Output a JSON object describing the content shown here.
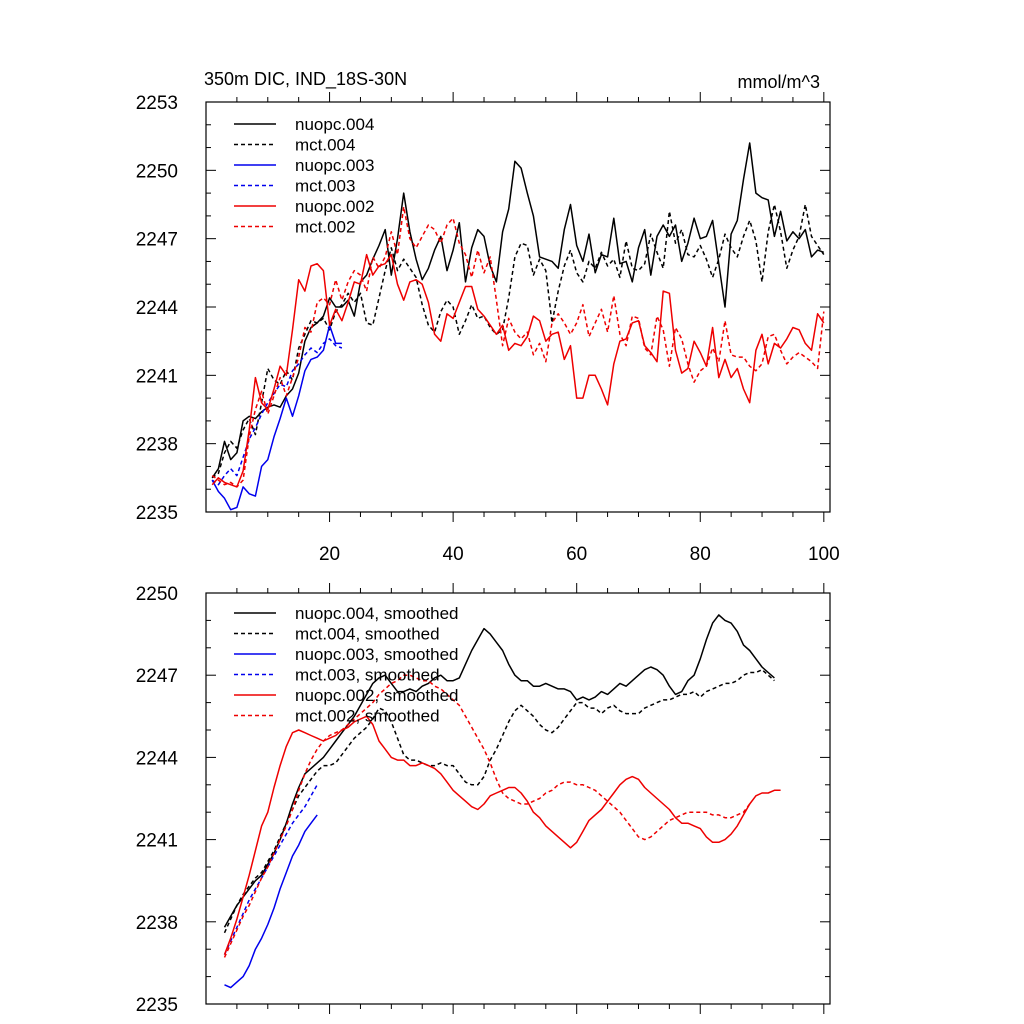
{
  "chart_data": [
    {
      "type": "line",
      "title": "350m DIC, IND_18S-30N",
      "units": "mmol/m^3",
      "ylim": [
        2235,
        2253
      ],
      "yticks": [
        2235,
        2238,
        2241,
        2244,
        2247,
        2250,
        2253
      ],
      "yticklabels": [
        "2235",
        "2238",
        "2241",
        "2244",
        "2247",
        "2250",
        "2253"
      ],
      "xlim": [
        0,
        101
      ],
      "xticks": [
        20,
        40,
        60,
        80,
        100
      ],
      "xticklabels": [
        "20",
        "40",
        "60",
        "80",
        "100"
      ],
      "legend_position": "top-left",
      "series": [
        {
          "name": "nuopc.004",
          "color": "#000000",
          "dash": "solid",
          "x_start": 1,
          "values": [
            2236.5,
            2236.9,
            2238.1,
            2237.3,
            2237.6,
            2239.0,
            2239.2,
            2239.1,
            2239.4,
            2239.6,
            2239.7,
            2239.6,
            2240.1,
            2240.4,
            2241.1,
            2242.5,
            2243.1,
            2243.3,
            2243.6,
            2244.4,
            2244.0,
            2244.0,
            2244.3,
            2243.6,
            2245.1,
            2245.4,
            2246.1,
            2246.7,
            2247.4,
            2245.4,
            2247.0,
            2249.0,
            2247.3,
            2246.1,
            2245.2,
            2245.7,
            2246.5,
            2247.1,
            2245.6,
            2246.5,
            2247.7,
            2245.1,
            2246.6,
            2247.4,
            2247.1,
            2245.8,
            2245.1,
            2247.3,
            2248.3,
            2250.4,
            2250.1,
            2249.0,
            2248.0,
            2246.2,
            2246.1,
            2246.0,
            2245.7,
            2247.4,
            2248.5,
            2246.7,
            2246.0,
            2247.2,
            2245.5,
            2246.3,
            2246.2,
            2247.9,
            2245.9,
            2246.0,
            2245.1,
            2246.6,
            2247.4,
            2245.4,
            2247.1,
            2247.6,
            2247.1,
            2247.6,
            2246.0,
            2246.8,
            2247.9,
            2247.0,
            2247.1,
            2247.8,
            2245.9,
            2244.0,
            2247.2,
            2247.8,
            2249.6,
            2251.2,
            2249.0,
            2248.8,
            2248.7,
            2247.1,
            2248.2,
            2246.9,
            2247.3,
            2247.0,
            2247.4,
            2246.2,
            2246.5,
            2246.4
          ]
        },
        {
          "name": "mct.004",
          "color": "#000000",
          "dash": "dashed",
          "x_start": 1,
          "values": [
            2236.5,
            2236.7,
            2237.6,
            2238.1,
            2237.8,
            2238.6,
            2239.1,
            2238.4,
            2239.8,
            2241.3,
            2240.8,
            2240.6,
            2241.2,
            2240.8,
            2242.2,
            2242.8,
            2243.4,
            2243.3,
            2243.5,
            2243.0,
            2243.8,
            2244.1,
            2244.6,
            2244.2,
            2244.6,
            2243.3,
            2243.2,
            2244.4,
            2245.6,
            2246.6,
            2245.6,
            2246.1,
            2245.7,
            2245.3,
            2244.1,
            2243.2,
            2242.9,
            2243.8,
            2244.3,
            2244.0,
            2242.8,
            2243.4,
            2244.1,
            2243.5,
            2243.6,
            2243.1,
            2242.8,
            2243.0,
            2244.4,
            2246.2,
            2246.8,
            2246.7,
            2245.4,
            2246.1,
            2245.6,
            2243.3,
            2244.7,
            2245.8,
            2246.5,
            2245.5,
            2245.1,
            2246.0,
            2245.7,
            2246.4,
            2245.8,
            2246.1,
            2245.3,
            2246.9,
            2245.7,
            2245.6,
            2245.9,
            2247.2,
            2246.4,
            2245.7,
            2248.2,
            2246.8,
            2247.4,
            2246.3,
            2246.2,
            2246.7,
            2246.1,
            2245.3,
            2246.1,
            2247.2,
            2246.6,
            2246.2,
            2247.1,
            2247.8,
            2246.9,
            2245.1,
            2247.3,
            2248.5,
            2247.3,
            2245.7,
            2246.5,
            2247.1,
            2248.5,
            2247.1,
            2246.7,
            2246.3
          ]
        },
        {
          "name": "nuopc.003",
          "color": "#0000ee",
          "dash": "solid",
          "x_start": 1,
          "values": [
            2236.4,
            2235.9,
            2235.6,
            2235.1,
            2235.2,
            2236.1,
            2235.8,
            2235.7,
            2237.0,
            2237.3,
            2238.3,
            2239.1,
            2240.0,
            2239.2,
            2240.1,
            2241.2,
            2241.7,
            2241.8,
            2242.1,
            2243.2,
            2242.4,
            2242.4
          ]
        },
        {
          "name": "mct.003",
          "color": "#0000ee",
          "dash": "dashed",
          "x_start": 1,
          "values": [
            2236.4,
            2236.2,
            2236.6,
            2236.9,
            2236.6,
            2237.4,
            2238.2,
            2238.7,
            2239.3,
            2239.8,
            2240.2,
            2240.6,
            2240.5,
            2241.2,
            2241.5,
            2241.9,
            2242.2,
            2242.0,
            2242.4,
            2242.6,
            2242.3,
            2242.2
          ]
        },
        {
          "name": "nuopc.002",
          "color": "#ee0000",
          "dash": "solid",
          "x_start": 1,
          "values": [
            2236.2,
            2236.5,
            2236.3,
            2236.2,
            2236.1,
            2236.8,
            2238.6,
            2240.9,
            2239.8,
            2239.5,
            2240.4,
            2241.4,
            2241.0,
            2243.0,
            2245.2,
            2244.7,
            2245.8,
            2245.9,
            2245.6,
            2243.2,
            2243.9,
            2243.4,
            2244.2,
            2245.1,
            2245.0,
            2246.3,
            2245.4,
            2245.8,
            2245.9,
            2246.3,
            2245.0,
            2244.3,
            2245.1,
            2245.2,
            2245.0,
            2244.2,
            2242.8,
            2242.5,
            2243.7,
            2243.5,
            2244.2,
            2244.9,
            2244.9,
            2243.9,
            2243.6,
            2243.2,
            2242.8,
            2243.2,
            2242.1,
            2242.4,
            2242.3,
            2242.7,
            2243.6,
            2243.4,
            2242.5,
            2242.8,
            2242.9,
            2241.7,
            2242.3,
            2240.0,
            2240.0,
            2241.0,
            2241.0,
            2240.4,
            2239.7,
            2241.5,
            2242.5,
            2242.6,
            2243.3,
            2243.4,
            2242.3,
            2242.0,
            2241.6,
            2244.7,
            2244.6,
            2242.1,
            2241.1,
            2241.3,
            2242.5,
            2242.0,
            2241.4,
            2243.1,
            2240.9,
            2241.7,
            2240.9,
            2241.3,
            2240.4,
            2239.8,
            2242.1,
            2242.8,
            2241.5,
            2242.4,
            2242.2,
            2242.6,
            2243.1,
            2243.0,
            2242.4,
            2242.1,
            2243.7,
            2243.3
          ]
        },
        {
          "name": "mct.002",
          "color": "#ee0000",
          "dash": "dashed",
          "x_start": 1,
          "values": [
            2236.6,
            2236.4,
            2236.2,
            2236.3,
            2236.1,
            2236.4,
            2238.3,
            2239.5,
            2240.3,
            2239.3,
            2240.1,
            2240.9,
            2240.1,
            2240.9,
            2241.8,
            2243.1,
            2242.9,
            2244.2,
            2244.4,
            2244.1,
            2245.2,
            2244.3,
            2245.1,
            2245.6,
            2245.4,
            2244.7,
            2246.2,
            2245.7,
            2246.2,
            2247.3,
            2246.3,
            2248.4,
            2247.0,
            2246.6,
            2247.1,
            2247.6,
            2247.4,
            2246.8,
            2247.6,
            2247.9,
            2246.8,
            2246.3,
            2245.3,
            2246.5,
            2245.5,
            2246.2,
            2244.3,
            2242.3,
            2243.5,
            2242.9,
            2242.6,
            2242.9,
            2241.9,
            2242.4,
            2241.6,
            2243.3,
            2243.7,
            2243.3,
            2242.8,
            2243.3,
            2244.1,
            2242.7,
            2243.3,
            2243.9,
            2242.9,
            2244.5,
            2242.8,
            2242.3,
            2243.6,
            2243.5,
            2242.2,
            2241.9,
            2243.6,
            2243.0,
            2241.4,
            2243.1,
            2242.6,
            2241.5,
            2240.7,
            2241.2,
            2241.4,
            2242.2,
            2241.6,
            2243.4,
            2241.9,
            2241.8,
            2241.8,
            2241.4,
            2241.2,
            2241.5,
            2242.7,
            2242.8,
            2242.1,
            2241.5,
            2241.8,
            2242.0,
            2241.8,
            2241.6,
            2241.3,
            2243.8
          ]
        }
      ]
    },
    {
      "type": "line",
      "title": "",
      "ylim": [
        2235,
        2250
      ],
      "yticks": [
        2235,
        2238,
        2241,
        2244,
        2247,
        2250
      ],
      "yticklabels": [
        "2235",
        "2238",
        "2241",
        "2244",
        "2247",
        "2250"
      ],
      "xlim": [
        0,
        101
      ],
      "xticks": [
        20,
        40,
        60,
        80,
        100
      ],
      "legend_position": "top-left",
      "series": [
        {
          "name": "nuopc.004, smoothed",
          "color": "#000000",
          "dash": "solid",
          "x_start": 3,
          "values": [
            2237.8,
            2238.2,
            2238.6,
            2238.9,
            2239.2,
            2239.5,
            2239.7,
            2240.1,
            2240.5,
            2241.0,
            2241.6,
            2242.3,
            2242.9,
            2243.4,
            2243.6,
            2243.8,
            2244.0,
            2244.3,
            2244.6,
            2244.9,
            2245.2,
            2245.5,
            2245.9,
            2246.3,
            2246.7,
            2246.9,
            2247.0,
            2246.7,
            2246.4,
            2246.4,
            2246.5,
            2246.4,
            2246.6,
            2246.7,
            2246.9,
            2247.0,
            2246.8,
            2246.8,
            2246.9,
            2247.4,
            2247.9,
            2248.3,
            2248.7,
            2248.5,
            2248.2,
            2247.9,
            2247.4,
            2247.0,
            2246.8,
            2246.8,
            2246.6,
            2246.6,
            2246.7,
            2246.6,
            2246.5,
            2246.5,
            2246.4,
            2246.1,
            2246.2,
            2246.1,
            2246.2,
            2246.4,
            2246.3,
            2246.5,
            2246.7,
            2246.6,
            2246.8,
            2247.0,
            2247.2,
            2247.3,
            2247.2,
            2247.0,
            2246.6,
            2246.3,
            2246.4,
            2246.8,
            2247.0,
            2247.6,
            2248.3,
            2248.9,
            2249.2,
            2249.0,
            2248.9,
            2248.6,
            2248.1,
            2247.9,
            2247.6,
            2247.3,
            2247.1,
            2246.9
          ]
        },
        {
          "name": "mct.004, smoothed",
          "color": "#000000",
          "dash": "dashed",
          "x_start": 3,
          "values": [
            2237.6,
            2238.1,
            2238.6,
            2239.0,
            2239.3,
            2239.6,
            2239.8,
            2240.2,
            2240.6,
            2241.1,
            2241.6,
            2242.1,
            2242.6,
            2242.9,
            2243.2,
            2243.5,
            2243.7,
            2243.7,
            2243.8,
            2244.1,
            2244.4,
            2244.7,
            2244.9,
            2245.1,
            2245.4,
            2245.8,
            2245.7,
            2245.3,
            2244.7,
            2244.1,
            2243.9,
            2243.9,
            2243.8,
            2243.7,
            2243.7,
            2243.8,
            2243.7,
            2243.7,
            2243.4,
            2243.1,
            2243.0,
            2243.0,
            2243.3,
            2243.9,
            2244.3,
            2244.8,
            2245.3,
            2245.7,
            2245.9,
            2245.7,
            2245.5,
            2245.2,
            2245.0,
            2244.9,
            2245.1,
            2245.4,
            2245.7,
            2246.0,
            2246.0,
            2245.8,
            2245.8,
            2245.6,
            2245.8,
            2245.9,
            2245.7,
            2245.6,
            2245.6,
            2245.6,
            2245.8,
            2245.9,
            2246.0,
            2246.1,
            2246.1,
            2246.2,
            2246.3,
            2246.3,
            2246.4,
            2246.2,
            2246.4,
            2246.5,
            2246.6,
            2246.7,
            2246.7,
            2246.8,
            2247.0,
            2247.1,
            2247.1,
            2247.2,
            2247.0,
            2246.8
          ]
        },
        {
          "name": "nuopc.003, smoothed",
          "color": "#0000ee",
          "dash": "solid",
          "x_start": 3,
          "values": [
            2235.7,
            2235.6,
            2235.8,
            2236.0,
            2236.4,
            2237.0,
            2237.4,
            2237.9,
            2238.5,
            2239.2,
            2239.8,
            2240.4,
            2240.8,
            2241.3,
            2241.6,
            2241.9
          ]
        },
        {
          "name": "mct.003, smoothed",
          "color": "#0000ee",
          "dash": "dashed",
          "x_start": 3,
          "values": [
            2236.8,
            2237.3,
            2237.8,
            2238.3,
            2238.8,
            2239.2,
            2239.6,
            2240.0,
            2240.4,
            2240.8,
            2241.2,
            2241.6,
            2241.9,
            2242.2,
            2242.6,
            2243.0
          ]
        },
        {
          "name": "nuopc.002, smoothed",
          "color": "#ee0000",
          "dash": "solid",
          "x_start": 3,
          "values": [
            2236.8,
            2237.4,
            2238.1,
            2238.9,
            2239.7,
            2240.6,
            2241.5,
            2242.0,
            2242.9,
            2243.7,
            2244.4,
            2244.9,
            2245.0,
            2244.9,
            2244.8,
            2244.7,
            2244.6,
            2244.7,
            2244.8,
            2245.0,
            2245.1,
            2245.3,
            2245.4,
            2245.5,
            2245.2,
            2244.6,
            2244.3,
            2244.0,
            2243.9,
            2243.9,
            2243.7,
            2243.7,
            2243.8,
            2243.7,
            2243.6,
            2243.4,
            2243.1,
            2242.8,
            2242.6,
            2242.4,
            2242.2,
            2242.1,
            2242.3,
            2242.6,
            2242.7,
            2242.8,
            2242.9,
            2242.9,
            2242.7,
            2242.4,
            2242.0,
            2241.8,
            2241.5,
            2241.3,
            2241.1,
            2240.9,
            2240.7,
            2240.9,
            2241.3,
            2241.7,
            2241.9,
            2242.1,
            2242.4,
            2242.7,
            2243.0,
            2243.2,
            2243.3,
            2243.2,
            2242.9,
            2242.7,
            2242.5,
            2242.3,
            2242.1,
            2241.8,
            2241.6,
            2241.6,
            2241.5,
            2241.4,
            2241.1,
            2240.9,
            2240.9,
            2241.0,
            2241.2,
            2241.5,
            2241.9,
            2242.3,
            2242.6,
            2242.7,
            2242.7,
            2242.8,
            2242.8
          ]
        },
        {
          "name": "mct.002, smoothed",
          "color": "#ee0000",
          "dash": "dashed",
          "x_start": 3,
          "values": [
            2236.7,
            2237.2,
            2237.7,
            2238.2,
            2238.6,
            2239.1,
            2239.6,
            2240.0,
            2240.5,
            2241.0,
            2241.5,
            2242.1,
            2242.8,
            2243.4,
            2243.9,
            2244.3,
            2244.6,
            2244.8,
            2244.9,
            2245.0,
            2245.2,
            2245.4,
            2245.6,
            2245.8,
            2246.0,
            2246.3,
            2246.5,
            2246.7,
            2246.8,
            2247.0,
            2247.0,
            2246.9,
            2246.8,
            2246.8,
            2246.6,
            2246.5,
            2246.3,
            2246.1,
            2245.9,
            2245.5,
            2245.1,
            2244.7,
            2244.3,
            2243.8,
            2243.2,
            2242.7,
            2242.5,
            2242.4,
            2242.3,
            2242.3,
            2242.4,
            2242.5,
            2242.7,
            2242.8,
            2243.0,
            2243.1,
            2243.1,
            2243.0,
            2243.0,
            2242.9,
            2242.8,
            2242.6,
            2242.4,
            2242.2,
            2242.0,
            2241.7,
            2241.4,
            2241.1,
            2241.0,
            2241.1,
            2241.3,
            2241.5,
            2241.7,
            2241.8,
            2241.9,
            2242.0,
            2242.0,
            2242.0,
            2242.0,
            2241.9,
            2241.9,
            2241.8,
            2241.8,
            2241.9,
            2242.0,
            2242.3
          ]
        }
      ]
    }
  ]
}
